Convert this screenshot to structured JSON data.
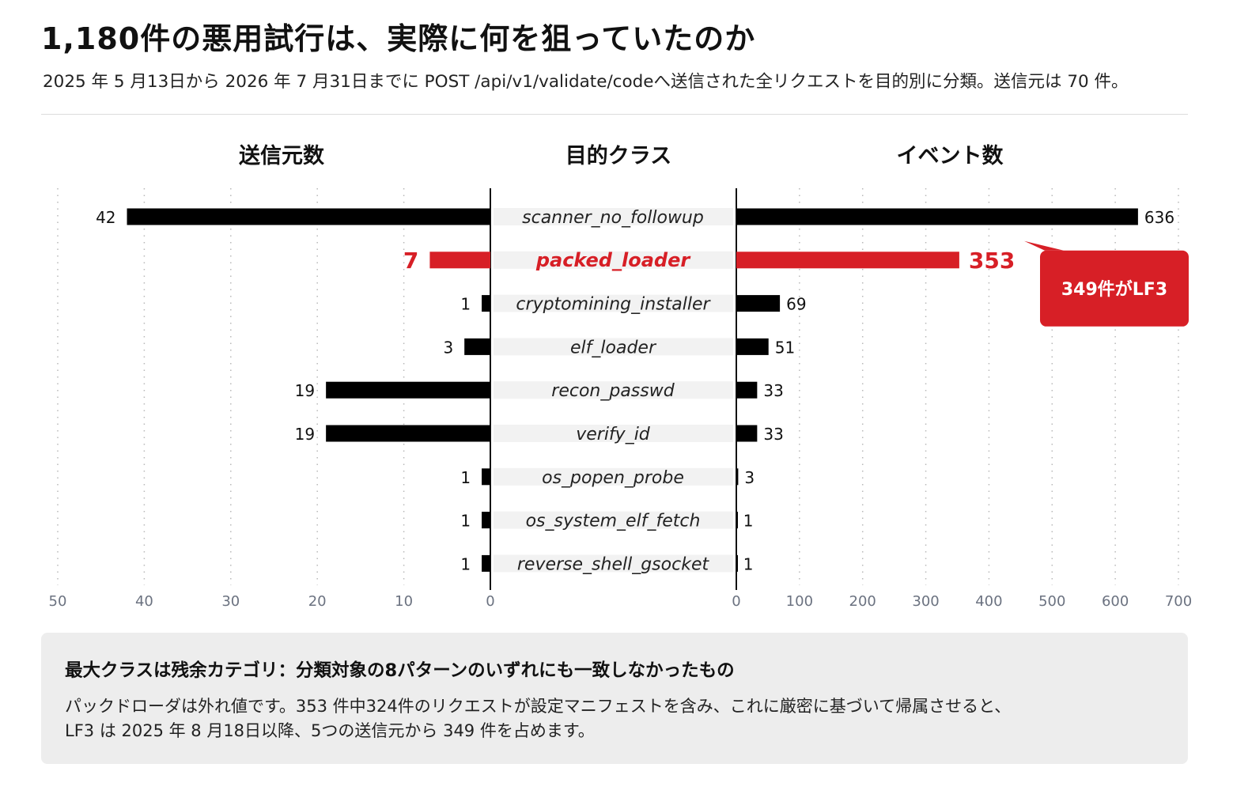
{
  "header": {
    "title": "1,180件の悪用試行は、実際に何を狙っていたのか",
    "subtitle": "2025 年 5 月13日から 2026 年 7 月31日までに POST /api/v1/validate/codeへ送信された全リクエストを目的別に分類。送信元は 70 件。"
  },
  "chart_data": {
    "type": "bar",
    "layout": "butterfly",
    "columns": {
      "left": "送信元数",
      "center": "目的クラス",
      "right": "イベント数"
    },
    "categories": [
      "scanner_no_followup",
      "packed_loader",
      "cryptomining_installer",
      "elf_loader",
      "recon_passwd",
      "verify_id",
      "os_popen_probe",
      "os_system_elf_fetch",
      "reverse_shell_gsocket"
    ],
    "series": [
      {
        "key": "sources",
        "values": [
          42,
          7,
          1,
          3,
          19,
          19,
          1,
          1,
          1
        ]
      },
      {
        "key": "events",
        "values": [
          636,
          353,
          69,
          51,
          33,
          33,
          3,
          1,
          1
        ]
      }
    ],
    "highlight_category": "packed_loader",
    "left_axis": {
      "lim": [
        0,
        50
      ],
      "ticks": [
        50,
        40,
        30,
        20,
        10,
        0
      ]
    },
    "right_axis": {
      "lim": [
        0,
        700
      ],
      "ticks": [
        0,
        100,
        200,
        300,
        400,
        500,
        600,
        700
      ]
    },
    "grid": "vertical dotted",
    "callout": {
      "text": "349件がLF3",
      "category": "packed_loader"
    },
    "colors": {
      "bar": "#000000",
      "highlight": "#d71f26",
      "label_band": "#f2f2f2",
      "tick_text": "#6b7280"
    }
  },
  "note": {
    "heading": "最大クラスは残余カテゴリ：分類対象の8パターンのいずれにも一致しなかったもの",
    "body_line1": "パックドローダは外れ値です。353 件中324件のリクエストが設定マニフェストを含み、これに厳密に基づいて帰属させると、",
    "body_line2": "LF3 は 2025 年 8 月18日以降、5つの送信元から 349 件を占めます。"
  }
}
